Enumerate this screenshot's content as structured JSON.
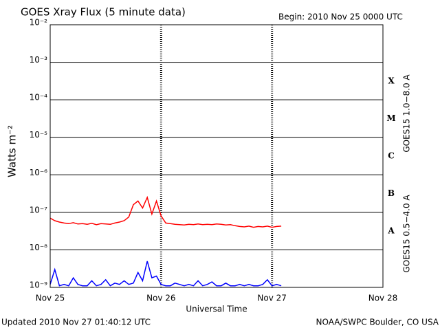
{
  "chart_data": {
    "type": "line",
    "title": "GOES Xray Flux (5 minute data)",
    "subtitle": "Begin:  2010 Nov 25 0000 UTC",
    "ylabel": "Watts m⁻²",
    "xlabel": "Universal Time",
    "updated": "Updated 2010 Nov 27 01:40:12 UTC",
    "source": "NOAA/SWPC Boulder, CO USA",
    "log_y": true,
    "grid": true,
    "flare_classes": [
      "X",
      "M",
      "C",
      "B",
      "A"
    ],
    "xlim": [
      0,
      72
    ],
    "xticks": [
      {
        "value": 0,
        "label": "Nov 25"
      },
      {
        "value": 24,
        "label": "Nov 26"
      },
      {
        "value": 48,
        "label": "Nov 27"
      },
      {
        "value": 72,
        "label": "Nov 28"
      }
    ],
    "ylim": [
      1e-09,
      0.01
    ],
    "yticks": [
      {
        "value": 0.01,
        "label": "10⁻²"
      },
      {
        "value": 0.001,
        "label": "10⁻³"
      },
      {
        "value": 0.0001,
        "label": "10⁻⁴"
      },
      {
        "value": 1e-05,
        "label": "10⁻⁵"
      },
      {
        "value": 1e-06,
        "label": "10⁻⁶"
      },
      {
        "value": 1e-07,
        "label": "10⁻⁷"
      },
      {
        "value": 1e-08,
        "label": "10⁻⁸"
      },
      {
        "value": 1e-09,
        "label": "10⁻⁹"
      }
    ],
    "x": [
      0,
      1,
      2,
      3,
      4,
      5,
      6,
      7,
      8,
      9,
      10,
      11,
      12,
      13,
      14,
      15,
      16,
      17,
      18,
      19,
      20,
      21,
      22,
      23,
      24,
      25,
      26,
      27,
      28,
      29,
      30,
      31,
      32,
      33,
      34,
      35,
      36,
      37,
      38,
      39,
      40,
      41,
      42,
      43,
      44,
      45,
      46,
      47,
      48,
      49,
      50
    ],
    "series": [
      {
        "name": "GOES15 1.0−8.0 A",
        "color": "#ff0000",
        "values": [
          7e-08,
          6e-08,
          5.5e-08,
          5.2e-08,
          5e-08,
          5.3e-08,
          4.9e-08,
          5e-08,
          4.8e-08,
          5.1e-08,
          4.7e-08,
          5e-08,
          4.9e-08,
          4.8e-08,
          5.2e-08,
          5.5e-08,
          6e-08,
          7.5e-08,
          1.6e-07,
          2e-07,
          1.3e-07,
          2.5e-07,
          9e-08,
          2e-07,
          8e-08,
          5.2e-08,
          5e-08,
          4.8e-08,
          4.7e-08,
          4.6e-08,
          4.8e-08,
          4.7e-08,
          4.9e-08,
          4.7e-08,
          4.8e-08,
          4.7e-08,
          4.9e-08,
          4.8e-08,
          4.6e-08,
          4.7e-08,
          4.4e-08,
          4.2e-08,
          4.1e-08,
          4.3e-08,
          4e-08,
          4.2e-08,
          4.1e-08,
          4.3e-08,
          4e-08,
          4.2e-08,
          4.3e-08
        ]
      },
      {
        "name": "GOES15 0.5−4.0 A",
        "color": "#0000ff",
        "values": [
          1.2e-09,
          3e-09,
          1.1e-09,
          1.2e-09,
          1.1e-09,
          1.8e-09,
          1.2e-09,
          1.1e-09,
          1.1e-09,
          1.5e-09,
          1.1e-09,
          1.2e-09,
          1.6e-09,
          1.1e-09,
          1.3e-09,
          1.2e-09,
          1.5e-09,
          1.2e-09,
          1.3e-09,
          2.5e-09,
          1.5e-09,
          5e-09,
          1.8e-09,
          2e-09,
          1.2e-09,
          1.1e-09,
          1.1e-09,
          1.3e-09,
          1.2e-09,
          1.1e-09,
          1.2e-09,
          1.1e-09,
          1.5e-09,
          1.1e-09,
          1.2e-09,
          1.4e-09,
          1.1e-09,
          1.1e-09,
          1.3e-09,
          1.1e-09,
          1.1e-09,
          1.2e-09,
          1.1e-09,
          1.2e-09,
          1.1e-09,
          1.1e-09,
          1.2e-09,
          1.6e-09,
          1.1e-09,
          1.2e-09,
          1.1e-09
        ]
      }
    ]
  }
}
